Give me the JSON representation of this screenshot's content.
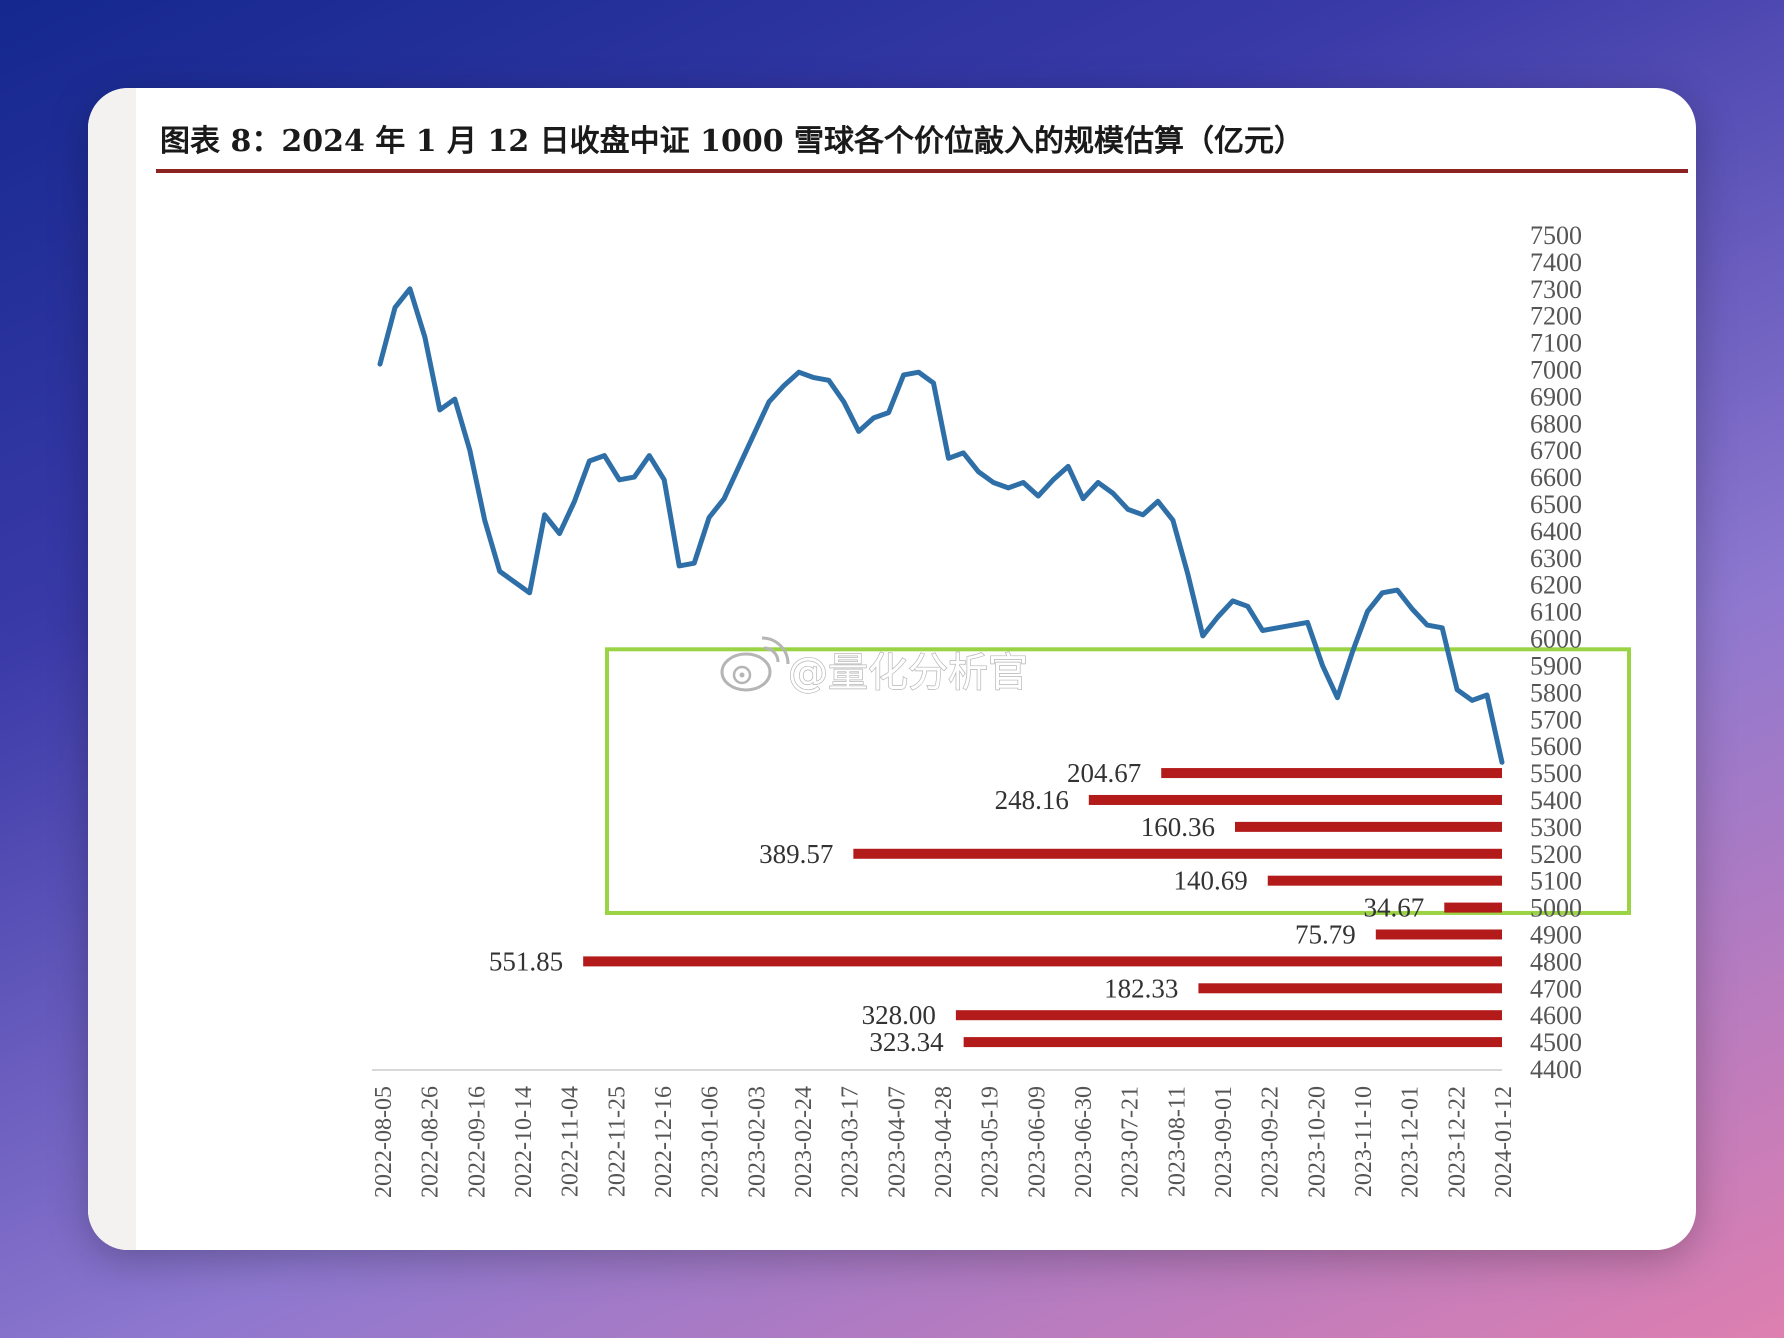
{
  "title": "图表 8：2024 年 1 月 12 日收盘中证 1000 雪球各个价位敲入的规模估算（亿元）",
  "watermark": "@量化分析官",
  "colors": {
    "line": "#2f6fa8",
    "bar": "#b31b1b",
    "highlight": "#9ad344",
    "title_rule": "#8b2323"
  },
  "chart_data": {
    "type": "line",
    "title": "图表 8：2024 年 1 月 12 日收盘中证 1000 雪球各个价位敲入的规模估算（亿元）",
    "y_axis": {
      "position": "right",
      "min": 4400,
      "max": 7500,
      "step": 100,
      "ticks": [
        7500,
        7400,
        7300,
        7200,
        7100,
        7000,
        6900,
        6800,
        6700,
        6600,
        6500,
        6400,
        6300,
        6200,
        6100,
        6000,
        5900,
        5800,
        5700,
        5600,
        5500,
        5400,
        5300,
        5200,
        5100,
        5000,
        4900,
        4800,
        4700,
        4600,
        4500,
        4400
      ]
    },
    "x_axis": {
      "start": "2022-08-05",
      "end": "2024-01-12",
      "tick_labels": [
        "2022-08-05",
        "2022-08-26",
        "2022-09-16",
        "2022-10-14",
        "2022-11-04",
        "2022-11-25",
        "2022-12-16",
        "2023-01-06",
        "2023-02-03",
        "2023-02-24",
        "2023-03-17",
        "2023-04-07",
        "2023-04-28",
        "2023-05-19",
        "2023-06-09",
        "2023-06-30",
        "2023-07-21",
        "2023-08-11",
        "2023-09-01",
        "2023-09-22",
        "2023-10-20",
        "2023-11-10",
        "2023-12-01",
        "2023-12-22",
        "2024-01-12"
      ]
    },
    "line_series": {
      "points": [
        [
          "2022-08-05",
          7020
        ],
        [
          "2022-08-12",
          7230
        ],
        [
          "2022-08-19",
          7300
        ],
        [
          "2022-08-26",
          7120
        ],
        [
          "2022-09-02",
          6850
        ],
        [
          "2022-09-09",
          6890
        ],
        [
          "2022-09-16",
          6700
        ],
        [
          "2022-09-23",
          6440
        ],
        [
          "2022-09-30",
          6250
        ],
        [
          "2022-10-14",
          6170
        ],
        [
          "2022-10-21",
          6460
        ],
        [
          "2022-10-28",
          6390
        ],
        [
          "2022-11-04",
          6510
        ],
        [
          "2022-11-11",
          6660
        ],
        [
          "2022-11-18",
          6680
        ],
        [
          "2022-11-25",
          6590
        ],
        [
          "2022-12-02",
          6600
        ],
        [
          "2022-12-09",
          6680
        ],
        [
          "2022-12-16",
          6590
        ],
        [
          "2022-12-23",
          6270
        ],
        [
          "2022-12-30",
          6280
        ],
        [
          "2023-01-06",
          6450
        ],
        [
          "2023-01-13",
          6520
        ],
        [
          "2023-01-20",
          6640
        ],
        [
          "2023-02-03",
          6880
        ],
        [
          "2023-02-10",
          6940
        ],
        [
          "2023-02-17",
          6990
        ],
        [
          "2023-02-24",
          6970
        ],
        [
          "2023-03-03",
          6960
        ],
        [
          "2023-03-10",
          6880
        ],
        [
          "2023-03-17",
          6770
        ],
        [
          "2023-03-24",
          6820
        ],
        [
          "2023-03-31",
          6840
        ],
        [
          "2023-04-07",
          6980
        ],
        [
          "2023-04-14",
          6990
        ],
        [
          "2023-04-21",
          6950
        ],
        [
          "2023-04-28",
          6670
        ],
        [
          "2023-05-05",
          6690
        ],
        [
          "2023-05-12",
          6620
        ],
        [
          "2023-05-19",
          6580
        ],
        [
          "2023-05-26",
          6560
        ],
        [
          "2023-06-02",
          6580
        ],
        [
          "2023-06-09",
          6530
        ],
        [
          "2023-06-16",
          6590
        ],
        [
          "2023-06-23",
          6640
        ],
        [
          "2023-06-30",
          6520
        ],
        [
          "2023-07-07",
          6580
        ],
        [
          "2023-07-14",
          6540
        ],
        [
          "2023-07-21",
          6480
        ],
        [
          "2023-07-28",
          6460
        ],
        [
          "2023-08-04",
          6510
        ],
        [
          "2023-08-11",
          6440
        ],
        [
          "2023-08-18",
          6240
        ],
        [
          "2023-08-25",
          6010
        ],
        [
          "2023-09-01",
          6080
        ],
        [
          "2023-09-08",
          6140
        ],
        [
          "2023-09-15",
          6120
        ],
        [
          "2023-09-22",
          6030
        ],
        [
          "2023-09-29",
          6040
        ],
        [
          "2023-10-13",
          6060
        ],
        [
          "2023-10-20",
          5900
        ],
        [
          "2023-10-27",
          5780
        ],
        [
          "2023-11-03",
          5950
        ],
        [
          "2023-11-10",
          6100
        ],
        [
          "2023-11-17",
          6170
        ],
        [
          "2023-11-24",
          6180
        ],
        [
          "2023-12-01",
          6110
        ],
        [
          "2023-12-08",
          6050
        ],
        [
          "2023-12-15",
          6040
        ],
        [
          "2023-12-22",
          5810
        ],
        [
          "2023-12-29",
          5770
        ],
        [
          "2024-01-05",
          5790
        ],
        [
          "2024-01-12",
          5540
        ]
      ]
    },
    "bar_series": {
      "orientation": "horizontal",
      "unit": "亿元",
      "bars": [
        {
          "level": 5500,
          "value": 204.67,
          "label": "204.67"
        },
        {
          "level": 5400,
          "value": 248.16,
          "label": "248.16"
        },
        {
          "level": 5300,
          "value": 160.36,
          "label": "160.36"
        },
        {
          "level": 5200,
          "value": 389.57,
          "label": "389.57"
        },
        {
          "level": 5100,
          "value": 140.69,
          "label": "140.69"
        },
        {
          "level": 5000,
          "value": 34.67,
          "label": "34.67"
        },
        {
          "level": 4900,
          "value": 75.79,
          "label": "75.79"
        },
        {
          "level": 4800,
          "value": 551.85,
          "label": "551.85"
        },
        {
          "level": 4700,
          "value": 182.33,
          "label": "182.33"
        },
        {
          "level": 4600,
          "value": 328.0,
          "label": "328.00"
        },
        {
          "level": 4500,
          "value": 323.34,
          "label": "323.34"
        }
      ]
    },
    "highlight_box": {
      "y_from": 4980,
      "y_to": 5960
    }
  }
}
